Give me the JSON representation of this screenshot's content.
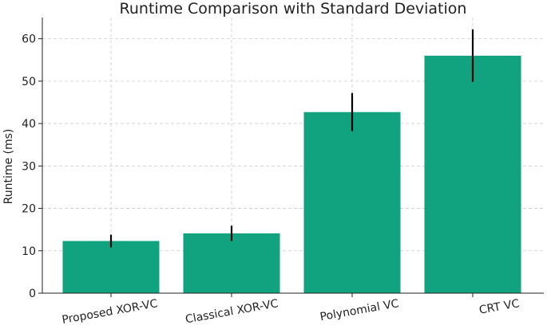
{
  "chart_data": {
    "type": "bar",
    "title": "Runtime Comparison with Standard Deviation",
    "xlabel": "",
    "ylabel": "Runtime (ms)",
    "categories": [
      "Proposed XOR-VC",
      "Classical XOR-VC",
      "Polynomial VC",
      "CRT VC"
    ],
    "values": [
      12.3,
      14.1,
      42.7,
      56.0
    ],
    "errors": [
      1.5,
      1.8,
      4.5,
      6.2
    ],
    "ylim": [
      0,
      65
    ],
    "yticks": [
      0,
      10,
      20,
      30,
      40,
      50,
      60
    ],
    "grid": true,
    "bar_color": "#11a37f",
    "error_color": "#000000"
  }
}
